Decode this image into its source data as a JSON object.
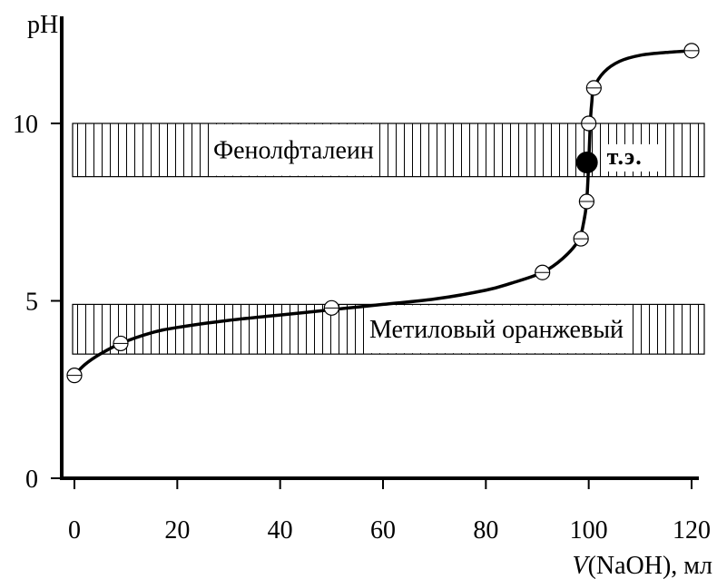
{
  "chart_data": {
    "type": "line",
    "title": "",
    "ylabel": "pH",
    "xlabel_italic": "V",
    "xlabel_rest": "(NaOH), мл",
    "xlim": [
      0,
      120
    ],
    "ylim": [
      0,
      12.5
    ],
    "x_ticks": [
      0,
      20,
      40,
      60,
      80,
      100,
      120
    ],
    "x_tick_labels": [
      "0",
      "20",
      "40",
      "60",
      "80",
      "100",
      "120"
    ],
    "y_ticks": [
      0,
      5,
      10
    ],
    "y_tick_labels": [
      "0",
      "5",
      "10"
    ],
    "grid": false,
    "series": [
      {
        "curve": [
          [
            0,
            2.9
          ],
          [
            2,
            3.2
          ],
          [
            5,
            3.5
          ],
          [
            9,
            3.8
          ],
          [
            15,
            4.1
          ],
          [
            20,
            4.25
          ],
          [
            30,
            4.45
          ],
          [
            40,
            4.6
          ],
          [
            50,
            4.75
          ],
          [
            60,
            4.9
          ],
          [
            70,
            5.05
          ],
          [
            80,
            5.3
          ],
          [
            85,
            5.5
          ],
          [
            91,
            5.8
          ],
          [
            95,
            6.2
          ],
          [
            98,
            6.7
          ],
          [
            99,
            7.2
          ],
          [
            99.6,
            7.8
          ],
          [
            100,
            8.9
          ],
          [
            100.3,
            10.0
          ],
          [
            100.6,
            10.6
          ],
          [
            101,
            11.0
          ],
          [
            103,
            11.45
          ],
          [
            106,
            11.75
          ],
          [
            110,
            11.92
          ],
          [
            115,
            12.0
          ],
          [
            120,
            12.05
          ]
        ],
        "points": [
          [
            0,
            2.9
          ],
          [
            9,
            3.8
          ],
          [
            50,
            4.8
          ],
          [
            91,
            5.8
          ],
          [
            98.5,
            6.75
          ],
          [
            99.6,
            7.8
          ],
          [
            100,
            10.0
          ],
          [
            101,
            11.0
          ],
          [
            120,
            12.05
          ]
        ]
      }
    ],
    "equivalence_point": {
      "x": 100,
      "y": 8.9,
      "label": "т.э."
    },
    "bands": [
      {
        "name": "Фенолфталеин",
        "range": [
          8.5,
          10.0
        ]
      },
      {
        "name": "Метиловый оранжевый",
        "range": [
          3.5,
          4.9
        ]
      }
    ]
  }
}
